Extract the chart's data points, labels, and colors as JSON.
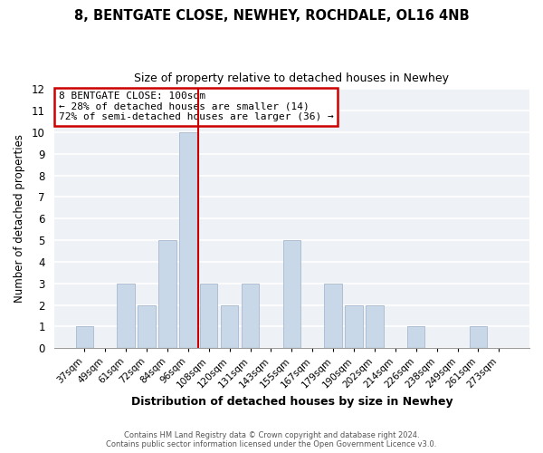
{
  "title": "8, BENTGATE CLOSE, NEWHEY, ROCHDALE, OL16 4NB",
  "subtitle": "Size of property relative to detached houses in Newhey",
  "xlabel": "Distribution of detached houses by size in Newhey",
  "ylabel": "Number of detached properties",
  "bar_labels": [
    "37sqm",
    "49sqm",
    "61sqm",
    "72sqm",
    "84sqm",
    "96sqm",
    "108sqm",
    "120sqm",
    "131sqm",
    "143sqm",
    "155sqm",
    "167sqm",
    "179sqm",
    "190sqm",
    "202sqm",
    "214sqm",
    "226sqm",
    "238sqm",
    "249sqm",
    "261sqm",
    "273sqm"
  ],
  "bar_values": [
    1,
    0,
    3,
    2,
    5,
    10,
    3,
    2,
    3,
    0,
    5,
    0,
    3,
    2,
    2,
    0,
    1,
    0,
    0,
    1,
    0
  ],
  "bar_color": "#c8d8e8",
  "bar_edge_color": "#a8b8cc",
  "highlight_index": 5,
  "highlight_line_color": "#cc0000",
  "ylim": [
    0,
    12
  ],
  "yticks": [
    0,
    1,
    2,
    3,
    4,
    5,
    6,
    7,
    8,
    9,
    10,
    11,
    12
  ],
  "annotation_title": "8 BENTGATE CLOSE: 100sqm",
  "annotation_line1": "← 28% of detached houses are smaller (14)",
  "annotation_line2": "72% of semi-detached houses are larger (36) →",
  "footer1": "Contains HM Land Registry data © Crown copyright and database right 2024.",
  "footer2": "Contains public sector information licensed under the Open Government Licence v3.0.",
  "background_color": "#ffffff",
  "plot_background": "#eef2f7",
  "grid_color": "#ffffff",
  "annotation_box_edge": "#cc0000",
  "title_fontsize": 10.5,
  "subtitle_fontsize": 9.0
}
